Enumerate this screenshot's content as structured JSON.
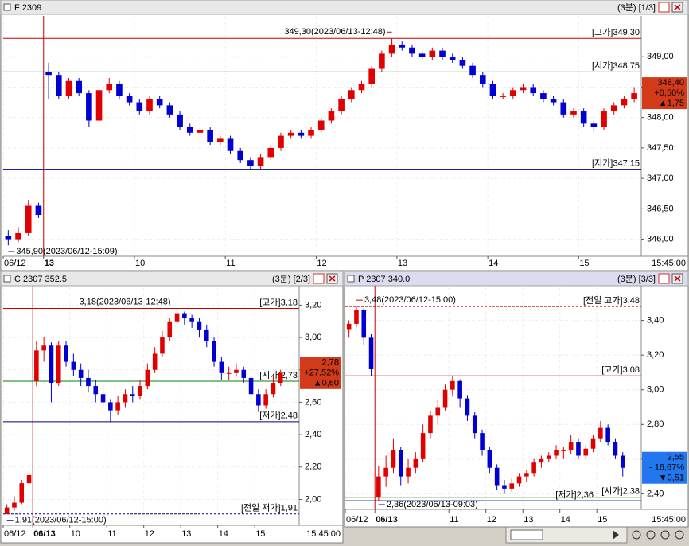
{
  "chart_data": [
    {
      "type": "candlestick",
      "title": "F 2309",
      "view": "(3분) [1/3]",
      "end_label": "15:45:00",
      "up_color": "#e00000",
      "down_color": "#0000d0",
      "ylim": [
        345.72,
        349.67
      ],
      "yticks": [
        {
          "value": 346,
          "label": "346,00"
        },
        {
          "value": 346.5,
          "label": "346,50"
        },
        {
          "value": 347,
          "label": "347,00"
        },
        {
          "value": 347.5,
          "label": "347,50"
        },
        {
          "value": 348,
          "label": "348,00"
        },
        {
          "value": 348.5,
          "label": "348,50"
        },
        {
          "value": 349,
          "label": "349,00"
        }
      ],
      "ref_lines": [
        {
          "label": "[고가]349,30",
          "value": 349.3,
          "color": "#cc0000"
        },
        {
          "label": "[시가]348,75",
          "value": 348.75,
          "color": "#008000"
        },
        {
          "label": "[저가]347,15",
          "value": 347.15,
          "color": "#000080"
        }
      ],
      "annotations": [
        {
          "text": "349,30(2023/06/13-12:48)",
          "value": 349.3,
          "color": "#cc0000"
        },
        {
          "text": "345,90(2023/06/12-15:09)",
          "value": 345.9,
          "color": "#000080"
        }
      ],
      "price_tag": {
        "texts": [
          "348,40",
          "+0,50%",
          "▲1,75"
        ],
        "color": "#d23a1a"
      },
      "categories": [
        "06/12",
        null,
        null,
        null,
        "13",
        null,
        null,
        null,
        null,
        null,
        null,
        null,
        null,
        "10",
        null,
        null,
        null,
        null,
        null,
        null,
        null,
        null,
        "11",
        null,
        null,
        null,
        null,
        null,
        null,
        null,
        null,
        "12",
        null,
        null,
        null,
        null,
        null,
        null,
        null,
        "13",
        null,
        null,
        null,
        null,
        null,
        null,
        null,
        null,
        "14",
        null,
        null,
        null,
        null,
        null,
        null,
        null,
        null,
        "15",
        null,
        null,
        null,
        null,
        null
      ],
      "candles": [
        [
          346.05,
          346.15,
          345.9,
          346.0
        ],
        [
          346.0,
          346.2,
          345.95,
          346.1
        ],
        [
          346.1,
          346.65,
          346.05,
          346.55
        ],
        [
          346.55,
          346.6,
          346.35,
          346.4
        ],
        [
          348.75,
          348.9,
          348.3,
          348.7
        ],
        [
          348.7,
          348.75,
          348.3,
          348.35
        ],
        [
          348.35,
          348.65,
          348.3,
          348.6
        ],
        [
          348.6,
          348.65,
          348.35,
          348.4
        ],
        [
          348.4,
          348.45,
          347.85,
          347.95
        ],
        [
          347.95,
          348.5,
          347.9,
          348.45
        ],
        [
          348.45,
          348.65,
          348.4,
          348.55
        ],
        [
          348.55,
          348.6,
          348.3,
          348.35
        ],
        [
          348.35,
          348.4,
          348.2,
          348.25
        ],
        [
          348.25,
          348.3,
          348.05,
          348.1
        ],
        [
          348.1,
          348.35,
          348.05,
          348.3
        ],
        [
          348.3,
          348.35,
          348.15,
          348.2
        ],
        [
          348.2,
          348.25,
          348.0,
          348.05
        ],
        [
          348.05,
          348.1,
          347.8,
          347.85
        ],
        [
          347.85,
          347.9,
          347.7,
          347.75
        ],
        [
          347.75,
          347.85,
          347.7,
          347.8
        ],
        [
          347.8,
          347.85,
          347.55,
          347.6
        ],
        [
          347.6,
          347.7,
          347.55,
          347.65
        ],
        [
          347.65,
          347.7,
          347.4,
          347.45
        ],
        [
          347.45,
          347.5,
          347.25,
          347.3
        ],
        [
          347.3,
          347.35,
          347.15,
          347.2
        ],
        [
          347.2,
          347.4,
          347.15,
          347.35
        ],
        [
          347.35,
          347.55,
          347.3,
          347.5
        ],
        [
          347.5,
          347.75,
          347.45,
          347.7
        ],
        [
          347.7,
          347.8,
          347.65,
          347.75
        ],
        [
          347.75,
          347.8,
          347.65,
          347.7
        ],
        [
          347.7,
          347.85,
          347.65,
          347.8
        ],
        [
          347.8,
          348.0,
          347.75,
          347.95
        ],
        [
          347.95,
          348.15,
          347.9,
          348.1
        ],
        [
          348.1,
          348.35,
          348.05,
          348.3
        ],
        [
          348.3,
          348.5,
          348.25,
          348.45
        ],
        [
          348.45,
          348.6,
          348.4,
          348.55
        ],
        [
          348.55,
          348.85,
          348.5,
          348.8
        ],
        [
          348.8,
          349.1,
          348.75,
          349.05
        ],
        [
          349.05,
          349.3,
          349.0,
          349.2
        ],
        [
          349.2,
          349.25,
          349.1,
          349.15
        ],
        [
          349.15,
          349.2,
          349.0,
          349.05
        ],
        [
          349.05,
          349.1,
          348.95,
          349.0
        ],
        [
          349.0,
          349.15,
          348.95,
          349.1
        ],
        [
          349.1,
          349.15,
          348.95,
          349.0
        ],
        [
          349.0,
          349.05,
          348.9,
          348.95
        ],
        [
          348.95,
          349.0,
          348.8,
          348.85
        ],
        [
          348.85,
          348.9,
          348.65,
          348.7
        ],
        [
          348.7,
          348.75,
          348.5,
          348.55
        ],
        [
          348.55,
          348.6,
          348.3,
          348.35
        ],
        [
          348.35,
          348.4,
          348.3,
          348.35
        ],
        [
          348.35,
          348.5,
          348.3,
          348.45
        ],
        [
          348.45,
          348.55,
          348.4,
          348.5
        ],
        [
          348.5,
          348.55,
          348.35,
          348.4
        ],
        [
          348.4,
          348.45,
          348.25,
          348.3
        ],
        [
          348.3,
          348.35,
          348.2,
          348.25
        ],
        [
          348.25,
          348.3,
          348.0,
          348.05
        ],
        [
          348.05,
          348.15,
          348.0,
          348.1
        ],
        [
          348.1,
          348.15,
          347.85,
          347.9
        ],
        [
          347.9,
          347.95,
          347.75,
          347.85
        ],
        [
          347.85,
          348.15,
          347.8,
          348.1
        ],
        [
          348.1,
          348.25,
          348.05,
          348.2
        ],
        [
          348.2,
          348.35,
          348.15,
          348.3
        ],
        [
          348.3,
          348.5,
          348.25,
          348.4
        ]
      ]
    },
    {
      "type": "candlestick",
      "title": "C 2307 352.5",
      "view": "(3분) [2/3]",
      "end_label": "15:45:00",
      "up_color": "#e00000",
      "down_color": "#0000d0",
      "ylim": [
        1.84,
        3.32
      ],
      "yticks": [
        {
          "value": 2,
          "label": "2,00"
        },
        {
          "value": 2.2,
          "label": "2,20"
        },
        {
          "value": 2.4,
          "label": "2,40"
        },
        {
          "value": 2.6,
          "label": "2,60"
        },
        {
          "value": 2.8,
          "label": "2,80"
        },
        {
          "value": 3,
          "label": "3,00"
        },
        {
          "value": 3.2,
          "label": "3,20"
        }
      ],
      "ref_lines": [
        {
          "label": "[고가]3,18",
          "value": 3.18,
          "color": "#cc0000"
        },
        {
          "label": "[시가]2,73",
          "value": 2.73,
          "color": "#008000"
        },
        {
          "label": "[저가]2,48",
          "value": 2.48,
          "color": "#000080"
        },
        {
          "label": "[전일 저가]1,91",
          "value": 1.91,
          "color": "#000080",
          "dashed": true
        }
      ],
      "annotations": [
        {
          "text": "3,18(2023/06/13-12:48)",
          "value": 3.18,
          "color": "#cc0000"
        },
        {
          "text": "1,91(2023/06/12-15:00)",
          "value": 1.91,
          "color": "#000080"
        }
      ],
      "price_tag": {
        "texts": [
          "2,78",
          "+27,52%",
          "▲0,60"
        ],
        "color": "#d23a1a"
      },
      "categories": [
        "06/12",
        null,
        null,
        null,
        "06/13",
        null,
        null,
        null,
        null,
        "10",
        null,
        null,
        null,
        null,
        "11",
        null,
        null,
        null,
        null,
        "12",
        null,
        null,
        null,
        null,
        "13",
        null,
        null,
        null,
        null,
        "14",
        null,
        null,
        null,
        null,
        "15",
        null,
        null,
        null
      ],
      "candles": [
        [
          1.91,
          1.97,
          1.91,
          1.95
        ],
        [
          1.95,
          2.02,
          1.93,
          1.98
        ],
        [
          1.98,
          2.12,
          1.97,
          2.1
        ],
        [
          2.1,
          2.18,
          2.08,
          2.15
        ],
        [
          2.73,
          2.98,
          2.7,
          2.92
        ],
        [
          2.92,
          3.0,
          2.85,
          2.95
        ],
        [
          2.95,
          2.97,
          2.6,
          2.72
        ],
        [
          2.72,
          2.98,
          2.7,
          2.95
        ],
        [
          2.95,
          2.98,
          2.82,
          2.85
        ],
        [
          2.85,
          2.9,
          2.76,
          2.8
        ],
        [
          2.8,
          2.84,
          2.7,
          2.75
        ],
        [
          2.75,
          2.8,
          2.66,
          2.7
        ],
        [
          2.7,
          2.74,
          2.6,
          2.65
        ],
        [
          2.65,
          2.7,
          2.56,
          2.6
        ],
        [
          2.6,
          2.62,
          2.48,
          2.55
        ],
        [
          2.55,
          2.64,
          2.52,
          2.6
        ],
        [
          2.6,
          2.68,
          2.57,
          2.65
        ],
        [
          2.65,
          2.7,
          2.6,
          2.64
        ],
        [
          2.64,
          2.74,
          2.62,
          2.7
        ],
        [
          2.7,
          2.84,
          2.68,
          2.8
        ],
        [
          2.8,
          2.94,
          2.78,
          2.9
        ],
        [
          2.9,
          3.04,
          2.88,
          3.0
        ],
        [
          3.0,
          3.12,
          2.98,
          3.1
        ],
        [
          3.1,
          3.18,
          3.06,
          3.15
        ],
        [
          3.15,
          3.16,
          3.08,
          3.12
        ],
        [
          3.12,
          3.14,
          3.06,
          3.1
        ],
        [
          3.1,
          3.12,
          3.0,
          3.05
        ],
        [
          3.05,
          3.08,
          2.94,
          2.98
        ],
        [
          2.98,
          3.0,
          2.82,
          2.85
        ],
        [
          2.85,
          2.88,
          2.74,
          2.78
        ],
        [
          2.78,
          2.82,
          2.74,
          2.78
        ],
        [
          2.78,
          2.84,
          2.76,
          2.8
        ],
        [
          2.8,
          2.82,
          2.72,
          2.75
        ],
        [
          2.75,
          2.77,
          2.62,
          2.65
        ],
        [
          2.65,
          2.68,
          2.54,
          2.58
        ],
        [
          2.58,
          2.68,
          2.56,
          2.65
        ],
        [
          2.65,
          2.76,
          2.63,
          2.72
        ],
        [
          2.72,
          2.8,
          2.7,
          2.78
        ]
      ]
    },
    {
      "type": "candlestick",
      "title": "P 2307 340.0",
      "view": "(3분) [3/3]",
      "end_label": "15:45:00",
      "up_color": "#e00000",
      "down_color": "#0000d0",
      "ylim": [
        2.31,
        3.6
      ],
      "yticks": [
        {
          "value": 2.4,
          "label": "2,40"
        },
        {
          "value": 2.6,
          "label": "2,60"
        },
        {
          "value": 2.8,
          "label": "2,80"
        },
        {
          "value": 3,
          "label": "3,00"
        },
        {
          "value": 3.2,
          "label": "3,20"
        },
        {
          "value": 3.4,
          "label": "3,40"
        }
      ],
      "ref_lines": [
        {
          "label": "[전일 고가]3,48",
          "value": 3.48,
          "color": "#cc0000",
          "dashed": true
        },
        {
          "label": "[고가]3,08",
          "value": 3.08,
          "color": "#cc0000"
        },
        {
          "label": "[시가]2,38",
          "value": 2.38,
          "color": "#008000"
        },
        {
          "label": "[저가]2,36",
          "value": 2.36,
          "color": "#000080"
        }
      ],
      "annotations": [
        {
          "text": "3,48(2023/06/12-15:00)",
          "value": 3.48,
          "color": "#cc0000"
        },
        {
          "text": "2,36(2023/06/13-09:03)",
          "value": 2.36,
          "color": "#000080"
        }
      ],
      "price_tag": {
        "texts": [
          "2,55",
          "- 16,67%",
          "▼0,51"
        ],
        "color": "#2277ee"
      },
      "categories": [
        "06/12",
        null,
        null,
        null,
        "06/13",
        null,
        null,
        null,
        null,
        null,
        null,
        null,
        null,
        null,
        "11",
        null,
        null,
        null,
        null,
        "12",
        null,
        null,
        null,
        null,
        "13",
        null,
        null,
        null,
        null,
        "14",
        null,
        null,
        null,
        null,
        "15",
        null,
        null,
        null
      ],
      "candles": [
        [
          3.35,
          3.4,
          3.3,
          3.38
        ],
        [
          3.38,
          3.48,
          3.36,
          3.46
        ],
        [
          3.46,
          3.47,
          3.26,
          3.3
        ],
        [
          3.3,
          3.32,
          3.08,
          3.12
        ],
        [
          2.38,
          2.56,
          2.36,
          2.5
        ],
        [
          2.5,
          2.62,
          2.44,
          2.55
        ],
        [
          2.55,
          2.72,
          2.52,
          2.65
        ],
        [
          2.65,
          2.67,
          2.45,
          2.5
        ],
        [
          2.5,
          2.6,
          2.46,
          2.55
        ],
        [
          2.55,
          2.64,
          2.52,
          2.6
        ],
        [
          2.6,
          2.8,
          2.58,
          2.75
        ],
        [
          2.75,
          2.88,
          2.72,
          2.85
        ],
        [
          2.85,
          2.94,
          2.8,
          2.9
        ],
        [
          2.9,
          3.03,
          2.88,
          3.0
        ],
        [
          3.0,
          3.08,
          2.96,
          3.05
        ],
        [
          3.05,
          3.06,
          2.9,
          2.95
        ],
        [
          2.95,
          2.97,
          2.82,
          2.85
        ],
        [
          2.85,
          2.87,
          2.72,
          2.75
        ],
        [
          2.75,
          2.77,
          2.62,
          2.65
        ],
        [
          2.65,
          2.67,
          2.52,
          2.55
        ],
        [
          2.55,
          2.57,
          2.42,
          2.45
        ],
        [
          2.45,
          2.48,
          2.4,
          2.43
        ],
        [
          2.43,
          2.49,
          2.41,
          2.46
        ],
        [
          2.46,
          2.52,
          2.44,
          2.5
        ],
        [
          2.5,
          2.54,
          2.47,
          2.52
        ],
        [
          2.52,
          2.6,
          2.5,
          2.58
        ],
        [
          2.58,
          2.62,
          2.55,
          2.6
        ],
        [
          2.6,
          2.64,
          2.58,
          2.62
        ],
        [
          2.62,
          2.68,
          2.6,
          2.65
        ],
        [
          2.65,
          2.67,
          2.6,
          2.65
        ],
        [
          2.65,
          2.74,
          2.63,
          2.7
        ],
        [
          2.7,
          2.72,
          2.6,
          2.62
        ],
        [
          2.62,
          2.68,
          2.6,
          2.66
        ],
        [
          2.66,
          2.74,
          2.64,
          2.72
        ],
        [
          2.72,
          2.82,
          2.7,
          2.78
        ],
        [
          2.78,
          2.8,
          2.68,
          2.7
        ],
        [
          2.7,
          2.72,
          2.6,
          2.62
        ],
        [
          2.62,
          2.64,
          2.5,
          2.55
        ]
      ]
    }
  ]
}
